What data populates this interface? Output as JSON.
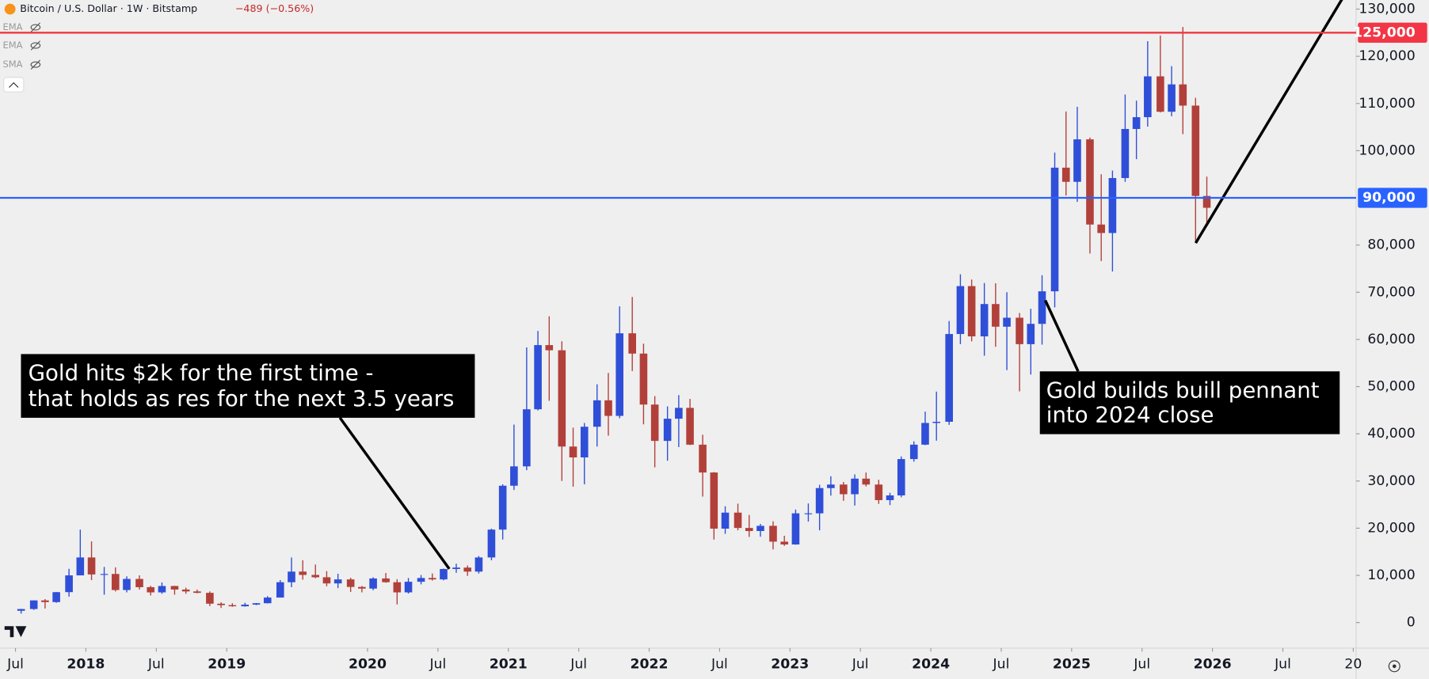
{
  "chart_data": {
    "type": "candlestick",
    "title": "Bitcoin / U.S. Dollar · 1W · Bitstamp",
    "subtitle": "−489 (−0.56%)",
    "indicators": [
      "EMA",
      "EMA",
      "SMA"
    ],
    "up_color": "#2f4fd8",
    "down_color": "#b2403a",
    "xlim": [
      2017.39,
      2027.02
    ],
    "ylim": [
      -5400,
      131930
    ],
    "xticks": [
      {
        "value": 2017.5,
        "label": "Jul"
      },
      2018,
      {
        "value": 2018.5,
        "label": "Jul"
      },
      2019,
      2020,
      {
        "value": 2020.5,
        "label": "Jul"
      },
      2021,
      {
        "value": 2021.5,
        "label": "Jul"
      },
      2022,
      {
        "value": 2022.5,
        "label": "Jul"
      },
      2023,
      {
        "value": 2023.5,
        "label": "Jul"
      },
      2024,
      {
        "value": 2024.5,
        "label": "Jul"
      },
      2025,
      {
        "value": 2025.5,
        "label": "Jul"
      },
      2026,
      {
        "value": 2026.5,
        "label": "Jul"
      },
      {
        "value": 2027,
        "label": "20"
      }
    ],
    "yticks": [
      0,
      {
        "value": 10000,
        "label": "10,000"
      },
      {
        "value": 20000,
        "label": "20,000"
      },
      {
        "value": 30000,
        "label": "30,000"
      },
      {
        "value": 40000,
        "label": "40,000"
      },
      {
        "value": 50000,
        "label": "50,000"
      },
      {
        "value": 60000,
        "label": "60,000"
      },
      {
        "value": 70000,
        "label": "70,000"
      },
      {
        "value": 80000,
        "label": "80,000"
      },
      {
        "value": 100000,
        "label": "100,000"
      },
      {
        "value": 110000,
        "label": "110,000"
      },
      {
        "value": 120000,
        "label": "120,000"
      },
      {
        "value": 130000,
        "label": "130,000"
      }
    ],
    "hlines": [
      {
        "value": 125000,
        "label": "125,000",
        "color": "#f23645"
      },
      {
        "value": 90000,
        "label": "90,000",
        "color": "#2962ff"
      }
    ],
    "annotations": [
      {
        "lines": [
          "Gold hits $2k for the first time -",
          "that holds as res for the next 3.5 years"
        ]
      },
      {
        "lines": [
          "Gold builds buill pennant",
          "into 2024 close"
        ]
      }
    ],
    "x": [
      2017.54,
      2017.63,
      2017.71,
      2017.79,
      2017.88,
      2017.96,
      2018.04,
      2018.13,
      2018.21,
      2018.29,
      2018.38,
      2018.46,
      2018.54,
      2018.63,
      2018.71,
      2018.79,
      2018.88,
      2018.96,
      2019.04,
      2019.13,
      2019.21,
      2019.29,
      2019.38,
      2019.46,
      2019.54,
      2019.63,
      2019.71,
      2019.79,
      2019.88,
      2019.96,
      2020.04,
      2020.13,
      2020.21,
      2020.29,
      2020.38,
      2020.46,
      2020.54,
      2020.63,
      2020.71,
      2020.79,
      2020.88,
      2020.96,
      2021.04,
      2021.13,
      2021.21,
      2021.29,
      2021.38,
      2021.46,
      2021.54,
      2021.63,
      2021.71,
      2021.79,
      2021.88,
      2021.96,
      2022.04,
      2022.13,
      2022.21,
      2022.29,
      2022.38,
      2022.46,
      2022.54,
      2022.63,
      2022.71,
      2022.79,
      2022.88,
      2022.96,
      2023.04,
      2023.13,
      2023.21,
      2023.29,
      2023.38,
      2023.46,
      2023.54,
      2023.63,
      2023.71,
      2023.79,
      2023.88,
      2023.96,
      2024.04,
      2024.13,
      2024.21,
      2024.29,
      2024.38,
      2024.46,
      2024.54,
      2024.63,
      2024.71,
      2024.79,
      2024.88,
      2024.96,
      2025.04,
      2025.13,
      2025.21,
      2025.29,
      2025.38,
      2025.46,
      2025.54,
      2025.63,
      2025.71,
      2025.79,
      2025.88,
      2025.96
    ],
    "candles": [
      [
        2500,
        2900,
        1900,
        2870
      ],
      [
        2870,
        4700,
        2700,
        4700
      ],
      [
        4700,
        4980,
        2980,
        4340
      ],
      [
        4340,
        6470,
        4200,
        6450
      ],
      [
        6450,
        11400,
        5500,
        10000
      ],
      [
        10000,
        19700,
        10900,
        13800
      ],
      [
        13800,
        17200,
        9000,
        10200
      ],
      [
        10200,
        11800,
        5900,
        10300
      ],
      [
        10300,
        11700,
        6600,
        6900
      ],
      [
        6900,
        9800,
        6400,
        9250
      ],
      [
        9250,
        10000,
        7000,
        7500
      ],
      [
        7500,
        7800,
        5750,
        6400
      ],
      [
        6400,
        8500,
        6100,
        7750
      ],
      [
        7750,
        7800,
        5900,
        7000
      ],
      [
        7000,
        7400,
        6100,
        6600
      ],
      [
        6600,
        7000,
        6200,
        6300
      ],
      [
        6300,
        6600,
        3500,
        4000
      ],
      [
        4000,
        4300,
        3100,
        3700
      ],
      [
        3700,
        4100,
        3350,
        3450
      ],
      [
        3450,
        4200,
        3380,
        3800
      ],
      [
        3800,
        4150,
        3700,
        4100
      ],
      [
        4100,
        5600,
        4050,
        5300
      ],
      [
        5300,
        9000,
        5300,
        8550
      ],
      [
        8550,
        13800,
        7500,
        10800
      ],
      [
        10800,
        13200,
        9100,
        10100
      ],
      [
        10100,
        12300,
        9400,
        9600
      ],
      [
        9600,
        10900,
        7700,
        8300
      ],
      [
        8300,
        10350,
        7300,
        9150
      ],
      [
        9150,
        9500,
        6500,
        7550
      ],
      [
        7550,
        7750,
        6400,
        7200
      ],
      [
        7200,
        9600,
        6850,
        9350
      ],
      [
        9350,
        10500,
        8450,
        8550
      ],
      [
        8550,
        9200,
        3850,
        6400
      ],
      [
        6400,
        9450,
        6150,
        8650
      ],
      [
        8650,
        10080,
        8100,
        9450
      ],
      [
        9450,
        10400,
        8900,
        9150
      ],
      [
        9150,
        11450,
        8950,
        11350
      ],
      [
        11350,
        12480,
        10550,
        11650
      ],
      [
        11650,
        12100,
        9900,
        10800
      ],
      [
        10800,
        14100,
        10400,
        13800
      ],
      [
        13800,
        19900,
        13200,
        19700
      ],
      [
        19700,
        29300,
        17600,
        29000
      ],
      [
        29000,
        41950,
        28100,
        33100
      ],
      [
        33100,
        58300,
        32300,
        45200
      ],
      [
        45200,
        61800,
        44950,
        58800
      ],
      [
        58800,
        64900,
        47000,
        57700
      ],
      [
        57700,
        59600,
        30000,
        37300
      ],
      [
        37300,
        41300,
        28800,
        35000
      ],
      [
        35000,
        42300,
        29300,
        41500
      ],
      [
        41500,
        50500,
        37300,
        47100
      ],
      [
        47100,
        52900,
        39600,
        43800
      ],
      [
        43800,
        67000,
        43300,
        61300
      ],
      [
        61300,
        69000,
        53300,
        57000
      ],
      [
        57000,
        59100,
        42000,
        46200
      ],
      [
        46200,
        47990,
        32900,
        38500
      ],
      [
        38500,
        45800,
        34300,
        43200
      ],
      [
        43200,
        48200,
        37200,
        45500
      ],
      [
        45500,
        47400,
        37600,
        37700
      ],
      [
        37700,
        39800,
        26700,
        31800
      ],
      [
        31800,
        31900,
        17600,
        19900
      ],
      [
        19900,
        24650,
        18800,
        23300
      ],
      [
        23300,
        25200,
        19550,
        20050
      ],
      [
        20050,
        22800,
        18150,
        19400
      ],
      [
        19400,
        20900,
        18200,
        20500
      ],
      [
        20500,
        21450,
        15500,
        17150
      ],
      [
        17150,
        18400,
        16250,
        16550
      ],
      [
        16550,
        23950,
        16500,
        23150
      ],
      [
        23150,
        25250,
        21400,
        23150
      ],
      [
        23150,
        29200,
        19550,
        28500
      ],
      [
        28500,
        31000,
        26900,
        29250
      ],
      [
        29250,
        29800,
        25800,
        27200
      ],
      [
        27200,
        31400,
        24800,
        30500
      ],
      [
        30500,
        31800,
        28850,
        29250
      ],
      [
        29250,
        30250,
        25150,
        25950
      ],
      [
        25950,
        27500,
        24900,
        26950
      ],
      [
        26950,
        35200,
        26550,
        34650
      ],
      [
        34650,
        38400,
        34100,
        37700
      ],
      [
        37700,
        44700,
        37600,
        42300
      ],
      [
        42300,
        48950,
        38550,
        42550
      ],
      [
        42550,
        63900,
        41900,
        61150
      ],
      [
        61150,
        73800,
        59000,
        71300
      ],
      [
        71300,
        72700,
        59600,
        60650
      ],
      [
        60650,
        71950,
        56550,
        67500
      ],
      [
        67500,
        71900,
        58450,
        62700
      ],
      [
        62700,
        70000,
        53500,
        64600
      ],
      [
        64600,
        65600,
        49000,
        59000
      ],
      [
        59000,
        66500,
        52550,
        63300
      ],
      [
        63300,
        73600,
        58900,
        70200
      ],
      [
        70200,
        99600,
        66800,
        96400
      ],
      [
        96400,
        108300,
        90500,
        93400
      ],
      [
        93400,
        109300,
        89150,
        102400
      ],
      [
        102400,
        102800,
        78200,
        84350
      ],
      [
        84350,
        95000,
        76600,
        82550
      ],
      [
        82550,
        95800,
        74400,
        94200
      ],
      [
        94200,
        111900,
        93400,
        104600
      ],
      [
        104600,
        110600,
        98200,
        107100
      ],
      [
        107100,
        123200,
        105100,
        115750
      ],
      [
        115750,
        124400,
        108100,
        108250
      ],
      [
        108250,
        117900,
        107300,
        114050
      ],
      [
        114050,
        126200,
        103500,
        109550
      ],
      [
        109550,
        111200,
        80600,
        90400
      ],
      [
        90400,
        94500,
        84500,
        87900
      ]
    ]
  }
}
